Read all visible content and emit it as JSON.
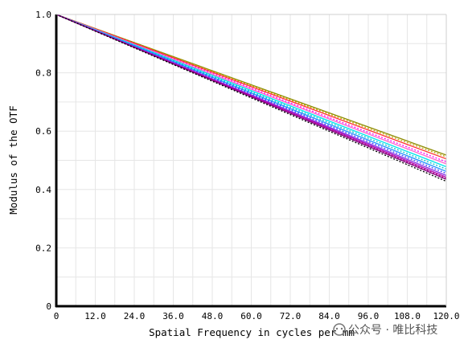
{
  "chart_data": {
    "type": "line",
    "title": "",
    "xlabel": "Spatial Frequency in cycles per mm",
    "ylabel": "Modulus of the OTF",
    "xlim": [
      0,
      120
    ],
    "ylim": [
      0,
      1
    ],
    "x_ticks": [
      "0",
      "12.0",
      "24.0",
      "36.0",
      "48.0",
      "60.0",
      "72.0",
      "84.0",
      "96.0",
      "108.0",
      "120.0"
    ],
    "y_ticks": [
      "0",
      "0.2",
      "0.4",
      "0.6",
      "0.8",
      "1.0"
    ],
    "grid": true,
    "legend": "none",
    "x": [
      0,
      120
    ],
    "series": [
      {
        "color": "#8b8b00",
        "dash": false,
        "values": [
          1.0,
          0.518
        ]
      },
      {
        "color": "#c9a300",
        "dash": true,
        "values": [
          1.0,
          0.512
        ]
      },
      {
        "color": "#ff3030",
        "dash": false,
        "values": [
          1.0,
          0.505
        ]
      },
      {
        "color": "#ff00ff",
        "dash": true,
        "values": [
          1.0,
          0.495
        ]
      },
      {
        "color": "#ff66cc",
        "dash": false,
        "values": [
          1.0,
          0.488
        ]
      },
      {
        "color": "#00e5ee",
        "dash": false,
        "values": [
          1.0,
          0.478
        ]
      },
      {
        "color": "#00c5cd",
        "dash": true,
        "values": [
          1.0,
          0.47
        ]
      },
      {
        "color": "#1e90ff",
        "dash": false,
        "values": [
          1.0,
          0.462
        ]
      },
      {
        "color": "#4040ff",
        "dash": true,
        "values": [
          1.0,
          0.455
        ]
      },
      {
        "color": "#8a2be2",
        "dash": false,
        "values": [
          1.0,
          0.448
        ]
      },
      {
        "color": "#b000b0",
        "dash": false,
        "values": [
          1.0,
          0.442
        ]
      },
      {
        "color": "#c71585",
        "dash": true,
        "values": [
          1.0,
          0.438
        ]
      },
      {
        "color": "#800080",
        "dash": false,
        "values": [
          1.0,
          0.435
        ]
      },
      {
        "color": "#000000",
        "dash": true,
        "values": [
          1.0,
          0.428
        ]
      }
    ]
  },
  "watermark": "公众号 · 唯比科技"
}
